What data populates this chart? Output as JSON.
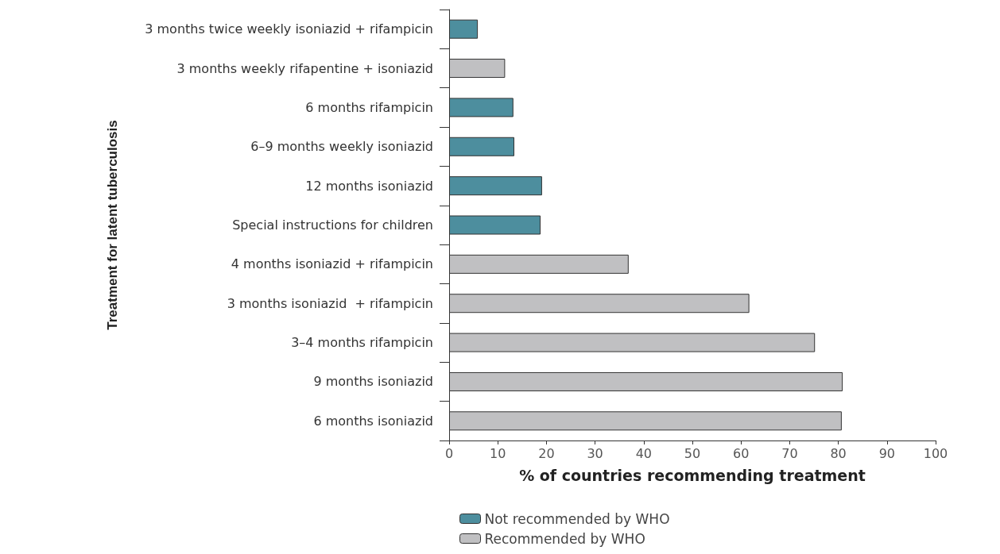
{
  "chart_data": {
    "type": "bar",
    "orientation": "horizontal",
    "xlabel": "% of countries recommending treatment",
    "ylabel": "Treatment for latent tuberculosis",
    "categories": [
      "3 months twice weekly isoniazid + rifampicin",
      "3 months weekly rifapentine + isoniazid",
      "6 months rifampicin",
      "6–9 months weekly isoniazid",
      "12 months isoniazid",
      "Special instructions for children",
      "4 months isoniazid + rifampicin",
      "3 months isoniazid  + rifampicin",
      "3–4 months rifampicin",
      "9 months isoniazid",
      "6 months isoniazid"
    ],
    "series": [
      {
        "name": "Not recommended by WHO",
        "color": "#4d8e9e",
        "values": [
          5.9,
          null,
          13.2,
          13.4,
          19.1,
          18.8,
          null,
          null,
          null,
          null,
          null
        ]
      },
      {
        "name": "Recommended by WHO",
        "color": "#c0c0c2",
        "values": [
          null,
          11.5,
          null,
          null,
          null,
          null,
          36.9,
          61.7,
          75.2,
          80.9,
          80.7
        ]
      }
    ],
    "xlim": [
      0,
      100
    ],
    "xticks": [
      0,
      10,
      20,
      30,
      40,
      50,
      60,
      70,
      80,
      90,
      100
    ],
    "grid": false,
    "legend": "bottom"
  }
}
